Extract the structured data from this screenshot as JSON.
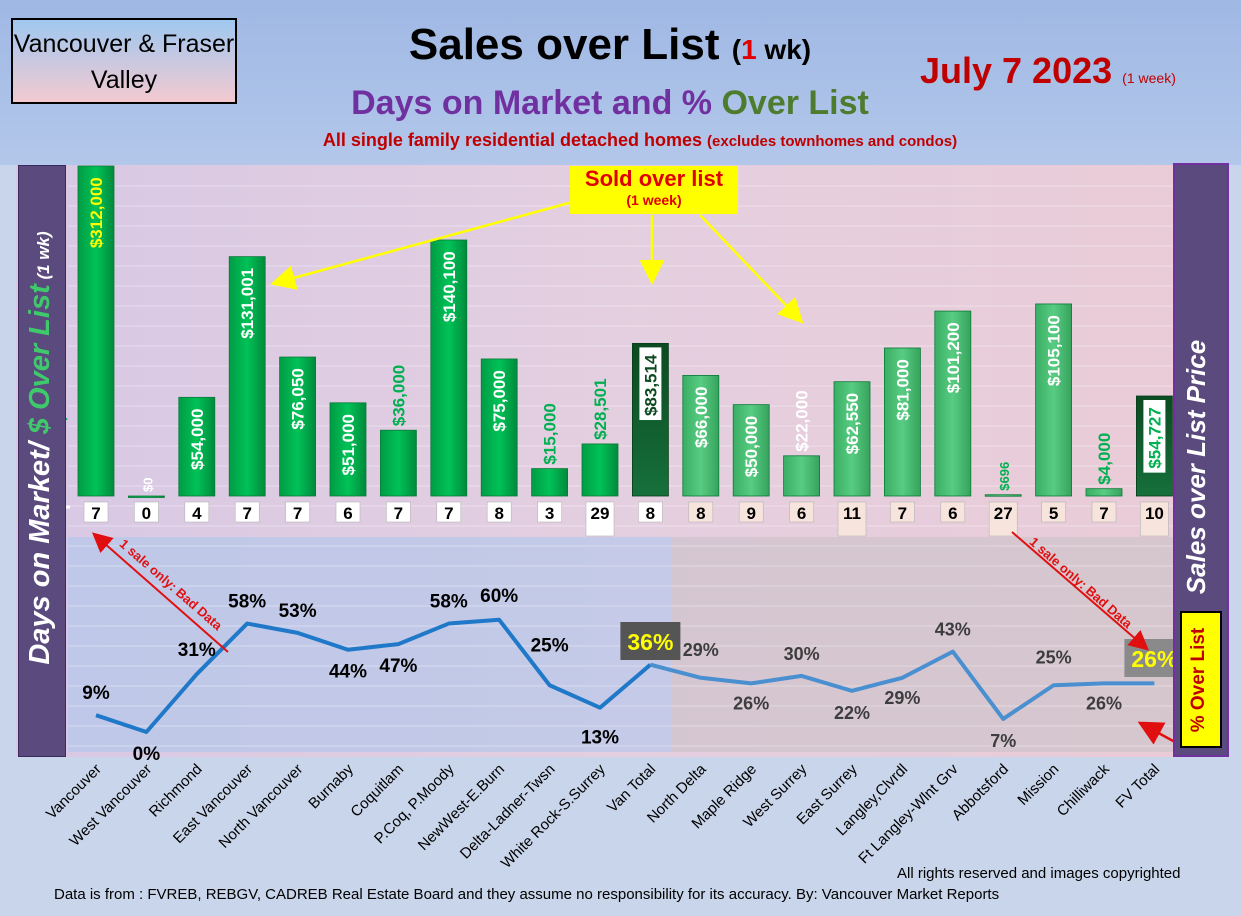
{
  "header": {
    "region": "Vancouver & Fraser Valley",
    "title": "Sales over List",
    "title_paren_open": "(",
    "title_num": "1",
    "title_unit": " wk)",
    "date": "July 7  2023",
    "date_note": "(1 week)",
    "subtitle_a": "Days on Market and % ",
    "subtitle_b": "Over List",
    "subtitle2_main": "All single family residential detached homes ",
    "subtitle2_note": "(excludes townhomes and condos)"
  },
  "left_axis": {
    "part1": "Days on Market/ ",
    "part2": "$ Over List",
    "part3": " (1 wk)"
  },
  "right_axis": {
    "label": "Sales over List Price"
  },
  "pct_box": {
    "label": "% Over List"
  },
  "callouts": {
    "sold_line1": "Sold over list",
    "sold_line2": "(1 week)",
    "bad_data": "1 sale only: Bad Data"
  },
  "footer": {
    "rights": "All rights reserved and  images copyrighted",
    "source": "Data is from : FVREB, REBGV, CADREB Real Estate Board and they assume no responsibility for its accuracy. By: Vancouver Market Reports"
  },
  "colors": {
    "van_bar": "#00b050",
    "fv_bar": "#4cc374",
    "total_bar": "#0f5a2a",
    "van_line": "#1f78c8",
    "fv_line": "#4a8fd0",
    "red": "#c00000",
    "purple": "#7030a0"
  },
  "chart_data": {
    "type": "bar+line",
    "categories": [
      "Vancouver",
      "West Vancouver",
      "Richmond",
      "East Vancouver",
      "North Vancouver",
      "Burnaby",
      "Coquitlam",
      "P.Coq, P.Moody",
      "NewWest-E.Burn",
      "Delta-Ladner-Twsn",
      "White Rock-S.Surrey",
      "Van Total",
      "North Delta",
      "Maple Ridge",
      "West Surrey",
      "East Surrey",
      "Langley,Clvrdl",
      "Ft Langley-Wlnt Grv",
      "Abbotsford",
      "Mission",
      "Chilliwack",
      "FV Total"
    ],
    "bar_labels": [
      "$312,000",
      "$0",
      "$54,000",
      "$131,001",
      "$76,050",
      "$51,000",
      "$36,000",
      "$140,100",
      "$75,000",
      "$15,000",
      "$28,501",
      "$83,514",
      "$66,000",
      "$50,000",
      "$22,000",
      "$62,550",
      "$81,000",
      "$101,200",
      "$696",
      "$105,100",
      "$4,000",
      "$54,727"
    ],
    "series": [
      {
        "name": "$ Over List",
        "values": [
          312000,
          0,
          54000,
          131001,
          76050,
          51000,
          36000,
          140100,
          75000,
          15000,
          28501,
          83514,
          66000,
          50000,
          22000,
          62550,
          81000,
          101200,
          696,
          105100,
          4000,
          54727
        ]
      },
      {
        "name": "Days on Market",
        "values": [
          7,
          0,
          4,
          7,
          7,
          6,
          7,
          7,
          8,
          3,
          29,
          8,
          8,
          9,
          6,
          11,
          7,
          6,
          27,
          5,
          7,
          10
        ]
      },
      {
        "name": "% Over List",
        "values": [
          9,
          0,
          31,
          58,
          53,
          44,
          47,
          58,
          60,
          25,
          13,
          36,
          29,
          26,
          30,
          22,
          29,
          43,
          7,
          25,
          26,
          26
        ]
      }
    ],
    "dom_labels": [
      "7",
      "0",
      "4",
      "7",
      "7",
      "6",
      "7",
      "7",
      "8",
      "3",
      "29",
      "8",
      "8",
      "9",
      "6",
      "11",
      "7",
      "6",
      "27",
      "5",
      "7",
      "10"
    ],
    "pct_labels": [
      "9%",
      "0%",
      "31%",
      "58%",
      "53%",
      "44%",
      "47%",
      "58%",
      "60%",
      "25%",
      "13%",
      "36%",
      "29%",
      "26%",
      "30%",
      "22%",
      "29%",
      "43%",
      "7%",
      "25%",
      "26%",
      "26%"
    ],
    "highlighted_totals": [
      "Van Total",
      "FV Total"
    ]
  }
}
